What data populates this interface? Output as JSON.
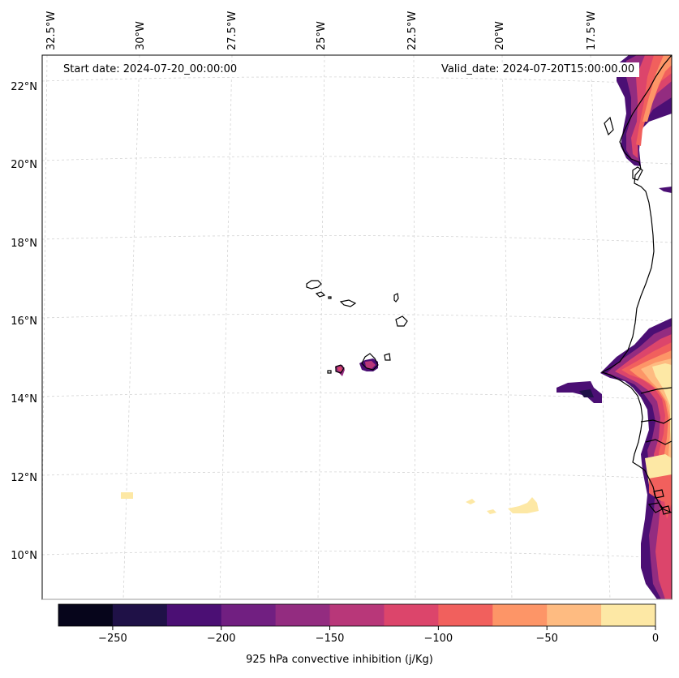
{
  "map": {
    "start_date": "Start date: 2024-07-20_00:00:00",
    "valid_date": "Valid_date: 2024-07-20T15:00:00.00",
    "lon_labels": [
      "32.5°W",
      "30°W",
      "27.5°W",
      "25°W",
      "22.5°W",
      "20°W",
      "17.5°W"
    ],
    "lat_labels": [
      "22°N",
      "20°N",
      "18°N",
      "16°N",
      "14°N",
      "12°N",
      "10°N"
    ]
  },
  "colorbar": {
    "label": "925 hPa convective inhibition (j/Kg)",
    "tick_labels": [
      "−250",
      "−200",
      "−150",
      "−100",
      "−50",
      "0"
    ],
    "ticks": [
      -250,
      -200,
      -150,
      -100,
      -50,
      0
    ],
    "levels": [
      -275,
      -250,
      -225,
      -200,
      -175,
      -150,
      -125,
      -100,
      -75,
      -50,
      -25,
      0
    ],
    "colors": [
      "#06051b",
      "#1f1147",
      "#4b0f74",
      "#711f81",
      "#932c80",
      "#b83779",
      "#dc456b",
      "#f1605d",
      "#fd9567",
      "#febb81",
      "#fde8a5"
    ]
  }
}
